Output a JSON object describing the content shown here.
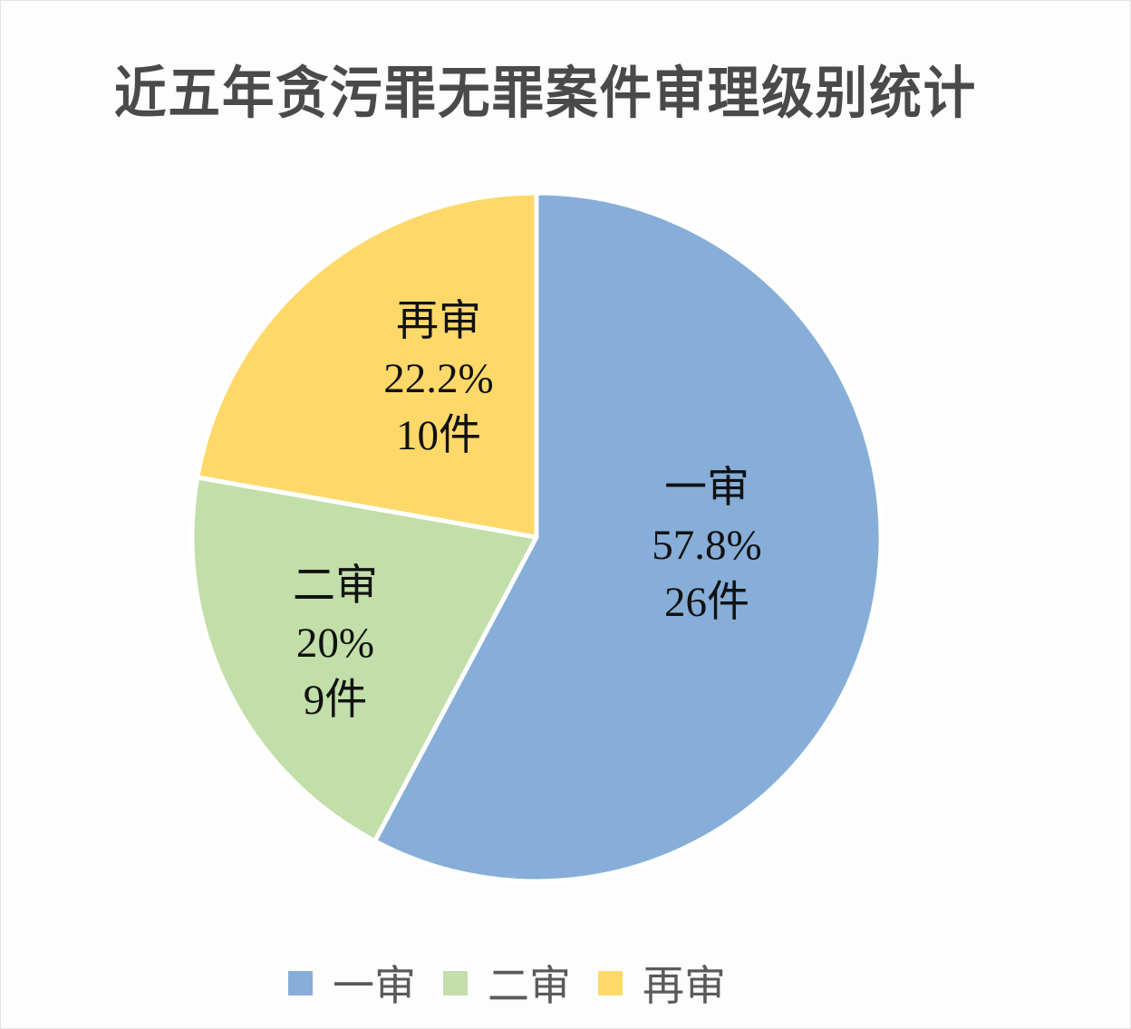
{
  "chart_data": {
    "type": "pie",
    "title": "近五年贪污罪无罪案件审理级别统计",
    "categories": [
      "一审",
      "二审",
      "再审"
    ],
    "values": [
      26,
      9,
      10
    ],
    "percentages": [
      "57.8%",
      "20%",
      "22.2%"
    ],
    "counts": [
      "26件",
      "9件",
      "10件"
    ],
    "colors": [
      "#86aed8",
      "#c2dea9",
      "#fed96a"
    ],
    "legend_position": "bottom",
    "start_angle": "12 o'clock, clockwise"
  },
  "title": "近五年贪污罪无罪案件审理级别统计",
  "slices": [
    {
      "name": "一审",
      "percent": "57.8%",
      "count": "26件"
    },
    {
      "name": "二审",
      "percent": "20%",
      "count": "9件"
    },
    {
      "name": "再审",
      "percent": "22.2%",
      "count": "10件"
    }
  ],
  "legend": [
    {
      "label": "一审",
      "color": "#86aed8"
    },
    {
      "label": "二审",
      "color": "#c2dea9"
    },
    {
      "label": "再审",
      "color": "#fed96a"
    }
  ]
}
